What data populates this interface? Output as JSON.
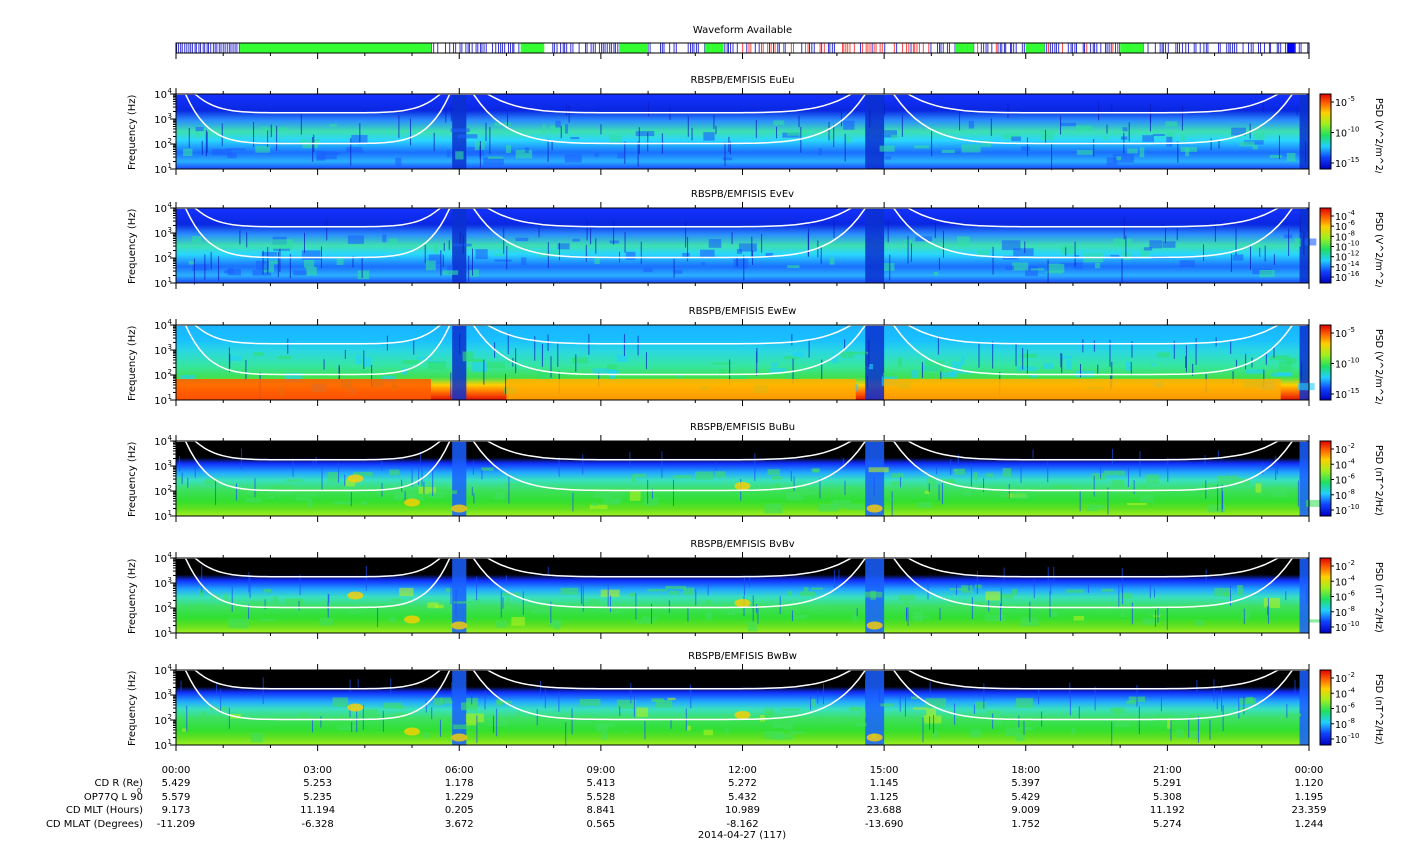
{
  "chart_data": {
    "type": "heatmap",
    "date_label": "2014-04-27 (117)",
    "time_ticks": [
      "00:00",
      "03:00",
      "06:00",
      "09:00",
      "12:00",
      "15:00",
      "18:00",
      "21:00",
      "00:00"
    ],
    "waveform": {
      "title": "Waveform Available",
      "green_segments_hours": [
        [
          1.35,
          5.4
        ],
        [
          7.3,
          7.8
        ],
        [
          9.4,
          10.0
        ],
        [
          11.2,
          11.6
        ],
        [
          16.5,
          16.9
        ],
        [
          18.0,
          18.4
        ],
        [
          20.0,
          20.5
        ]
      ],
      "blue_block_hours": [
        23.55,
        23.7
      ],
      "colors": {
        "survey": "#1f1fd0",
        "burst": "#33ff33",
        "other": "#ff3333"
      }
    },
    "panels": [
      {
        "title": "RBSPB/EMFISIS  EuEu",
        "ylabel": "Frequency (Hz)",
        "y_ticks": [
          "10",
          "10",
          "10",
          "10"
        ],
        "y_exps": [
          "1",
          "2",
          "3",
          "4"
        ],
        "cb_label": "PSD (V^2/m^2/Hz)",
        "cb_ticks": [
          "10",
          "10",
          "10"
        ],
        "cb_exps": [
          "-5",
          "-10",
          "-15"
        ],
        "style": "E"
      },
      {
        "title": "RBSPB/EMFISIS  EvEv",
        "ylabel": "Frequency (Hz)",
        "y_ticks": [
          "10",
          "10",
          "10",
          "10"
        ],
        "y_exps": [
          "1",
          "2",
          "3",
          "4"
        ],
        "cb_label": "PSD (V^2/m^2/Hz)",
        "cb_ticks": [
          "10",
          "10",
          "10",
          "10",
          "10",
          "10",
          "10"
        ],
        "cb_exps": [
          "-4",
          "-6",
          "-8",
          "-10",
          "-12",
          "-14",
          "-16"
        ],
        "style": "E"
      },
      {
        "title": "RBSPB/EMFISIS  EwEw",
        "ylabel": "Frequency (Hz)",
        "y_ticks": [
          "10",
          "10",
          "10",
          "10"
        ],
        "y_exps": [
          "1",
          "2",
          "3",
          "4"
        ],
        "cb_label": "PSD (V^2/m^2/Hz)",
        "cb_ticks": [
          "10",
          "10",
          "10"
        ],
        "cb_exps": [
          "-5",
          "-10",
          "-15"
        ],
        "style": "Ew"
      },
      {
        "title": "RBSPB/EMFISIS  BuBu",
        "ylabel": "Frequency (Hz)",
        "y_ticks": [
          "10",
          "10",
          "10",
          "10"
        ],
        "y_exps": [
          "1",
          "2",
          "3",
          "4"
        ],
        "cb_label": "PSD (nT^2/Hz)",
        "cb_ticks": [
          "10",
          "10",
          "10",
          "10",
          "10"
        ],
        "cb_exps": [
          "-2",
          "-4",
          "-6",
          "-8",
          "-10"
        ],
        "style": "B"
      },
      {
        "title": "RBSPB/EMFISIS  BvBv",
        "ylabel": "Frequency (Hz)",
        "y_ticks": [
          "10",
          "10",
          "10",
          "10"
        ],
        "y_exps": [
          "1",
          "2",
          "3",
          "4"
        ],
        "cb_label": "PSD (nT^2/Hz)",
        "cb_ticks": [
          "10",
          "10",
          "10",
          "10",
          "10"
        ],
        "cb_exps": [
          "-2",
          "-4",
          "-6",
          "-8",
          "-10"
        ],
        "style": "B"
      },
      {
        "title": "RBSPB/EMFISIS  BwBw",
        "ylabel": "Frequency (Hz)",
        "y_ticks": [
          "10",
          "10",
          "10",
          "10"
        ],
        "y_exps": [
          "1",
          "2",
          "3",
          "4"
        ],
        "cb_label": "PSD (nT^2/Hz)",
        "cb_ticks": [
          "10",
          "10",
          "10",
          "10",
          "10"
        ],
        "cb_exps": [
          "-2",
          "-4",
          "-6",
          "-8",
          "-10"
        ],
        "style": "B"
      }
    ],
    "ephemeris": {
      "labels": [
        "CD R (Re)",
        "OP77Q L 90",
        "CD MLT (Hours)",
        "CD MLAT (Degrees)"
      ],
      "rows": [
        [
          "5.429",
          "5.253",
          "1.178",
          "5.413",
          "5.272",
          "1.145",
          "5.397",
          "5.291",
          "1.120"
        ],
        [
          "5.579",
          "5.235",
          "1.229",
          "5.528",
          "5.432",
          "1.125",
          "5.429",
          "5.308",
          "1.195"
        ],
        [
          "9.173",
          "11.194",
          "0.205",
          "8.841",
          "10.989",
          "23.688",
          "9.009",
          "11.192",
          "23.359"
        ],
        [
          "-11.209",
          "-6.328",
          "3.672",
          "0.565",
          "-8.162",
          "-13.690",
          "1.752",
          "5.274",
          "1.244"
        ]
      ]
    },
    "y_range_log10": [
      1,
      4
    ],
    "x_range_hours": [
      0,
      24
    ]
  }
}
